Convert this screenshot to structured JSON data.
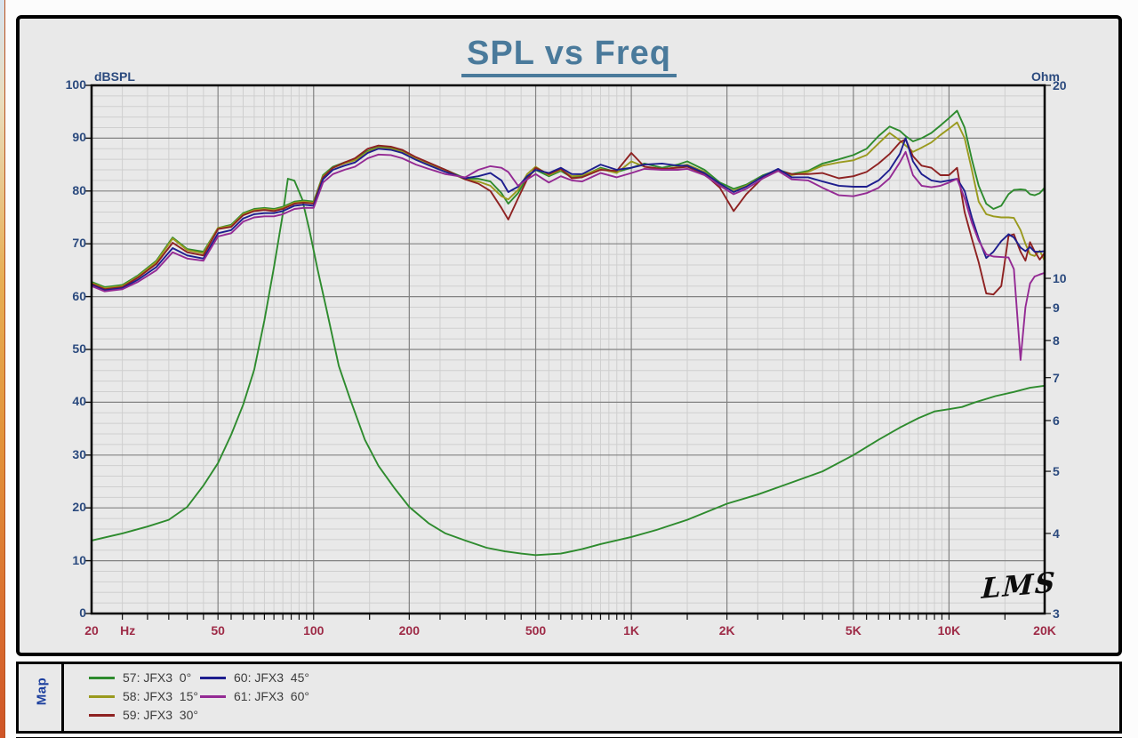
{
  "window": {
    "map_tab_label": "Map",
    "logo_text": "LMS"
  },
  "chart_data": {
    "type": "line",
    "title": "SPL vs Freq",
    "grid": true,
    "x_axis": {
      "unit": "Hz",
      "scale": "log",
      "min": 20,
      "max": 20000,
      "major_gridlines": [
        50,
        100,
        200,
        500,
        1000,
        2000,
        5000,
        10000
      ],
      "labels": [
        {
          "f": 20,
          "t": "20"
        },
        {
          "f": 26,
          "t": "Hz"
        },
        {
          "f": 50,
          "t": "50"
        },
        {
          "f": 100,
          "t": "100"
        },
        {
          "f": 200,
          "t": "200"
        },
        {
          "f": 500,
          "t": "500"
        },
        {
          "f": 1000,
          "t": "1K"
        },
        {
          "f": 2000,
          "t": "2K"
        },
        {
          "f": 5000,
          "t": "5K"
        },
        {
          "f": 10000,
          "t": "10K"
        },
        {
          "f": 20000,
          "t": "20K"
        }
      ]
    },
    "y_left": {
      "label": "dBSPL",
      "min": 0,
      "max": 100,
      "major_step": 10,
      "minor_step": 2,
      "tick_labels": [
        100,
        90,
        80,
        70,
        60,
        50,
        40,
        30,
        20,
        10,
        0
      ]
    },
    "y_right": {
      "label": "Ohm",
      "scale": "log",
      "min": 3,
      "max": 20,
      "tick_labels": [
        20,
        10,
        9,
        8,
        7,
        6,
        5,
        4,
        3
      ]
    },
    "colors": {
      "minor_grid": "#cfcfcf",
      "major_grid": "#828282",
      "frame": "#000000",
      "x_label": "#9e2b47",
      "y_label": "#2b4a7e",
      "title": "#4a7a9b"
    },
    "spl_freqs": [
      20,
      22,
      25,
      28,
      32,
      36,
      40,
      45,
      50,
      55,
      60,
      65,
      70,
      75,
      80,
      87,
      93,
      100,
      107,
      115,
      125,
      135,
      148,
      160,
      175,
      190,
      210,
      230,
      260,
      300,
      330,
      360,
      390,
      410,
      440,
      470,
      500,
      550,
      600,
      650,
      700,
      800,
      900,
      1000,
      1100,
      1250,
      1400,
      1500,
      1700,
      1900,
      2100,
      2300,
      2600,
      2900,
      3200,
      3600,
      4000,
      4500,
      5000,
      5500,
      6000,
      6500,
      7000,
      7300,
      7700,
      8200,
      8800,
      9400,
      10000,
      10600,
      11200,
      11800,
      12400,
      13100,
      13800,
      14600,
      15400,
      16000,
      16800,
      17400,
      18000,
      18600,
      19300,
      20000
    ],
    "series": [
      {
        "id": "57",
        "legend_label": "57: JFX3  0°",
        "color": "#2e8b2e",
        "axis": "left",
        "values": [
          62.8,
          61.8,
          62.2,
          64,
          66.8,
          71.2,
          69,
          68.5,
          73,
          73.6,
          75.8,
          76.6,
          76.8,
          76.6,
          77,
          78,
          78.2,
          78,
          83,
          84.6,
          85.4,
          86,
          87.6,
          88.3,
          88.2,
          87.6,
          86.3,
          85.3,
          84,
          82.4,
          82.3,
          81.8,
          79.6,
          77.6,
          79.6,
          82.6,
          84,
          82.8,
          83.8,
          82.6,
          82.8,
          84.4,
          83.6,
          84.4,
          85.2,
          84.4,
          85,
          85.6,
          84,
          81.6,
          80.4,
          81.2,
          83,
          84,
          83.2,
          83.8,
          85.2,
          86,
          86.8,
          88,
          90.4,
          92.2,
          91.4,
          90.4,
          89.4,
          90,
          91,
          92.4,
          93.8,
          95.2,
          92,
          86,
          81,
          77.6,
          76.6,
          77.2,
          79.4,
          80.2,
          80.3,
          80.2,
          79.4,
          79.2,
          79.6,
          80.6
        ]
      },
      {
        "id": "58",
        "legend_label": "58: JFX3  15°",
        "color": "#9a9a1e",
        "axis": "left",
        "values": [
          62.6,
          61.6,
          62,
          63.8,
          66.6,
          71,
          68.8,
          68.2,
          73,
          73.4,
          75.6,
          76.4,
          76.6,
          76.4,
          76.8,
          77.8,
          78,
          77.8,
          82.8,
          84.4,
          85.2,
          85.8,
          87.4,
          88.2,
          88,
          87.4,
          86.1,
          85.1,
          83.8,
          82.2,
          81.8,
          81,
          79,
          78.4,
          80.2,
          83.2,
          84.6,
          83,
          84,
          82.8,
          83,
          84.2,
          83.4,
          85.6,
          84.6,
          84,
          84.6,
          85,
          83.6,
          81.2,
          80,
          81,
          82.8,
          83.8,
          83,
          83.6,
          84.8,
          85.4,
          85.8,
          86.8,
          89,
          91,
          89.6,
          88.6,
          87.4,
          88.2,
          89.2,
          90.6,
          91.8,
          93,
          90,
          84,
          78,
          75.6,
          75.2,
          75,
          75,
          74.9,
          72.6,
          70,
          68,
          67.7,
          68.7,
          66.8
        ]
      },
      {
        "id": "59",
        "legend_label": "59: JFX3  30°",
        "color": "#8e2222",
        "axis": "left",
        "values": [
          62.4,
          61.4,
          61.8,
          63.6,
          66.2,
          70.2,
          68.4,
          67.8,
          72.8,
          73.2,
          75.4,
          76.2,
          76.4,
          76.2,
          76.6,
          77.6,
          77.8,
          77.6,
          82.6,
          84.4,
          85.4,
          86.2,
          88,
          88.6,
          88.4,
          87.8,
          86.4,
          85.4,
          84,
          82.2,
          81.4,
          80,
          76.8,
          74.6,
          78.6,
          82.2,
          84.4,
          83.2,
          84.2,
          82.4,
          82.6,
          84,
          83.8,
          87.2,
          84.6,
          84.2,
          84.4,
          84.6,
          83.2,
          80.6,
          76.2,
          79.4,
          82.6,
          83.8,
          83.2,
          83.2,
          83.4,
          82.4,
          82.8,
          83.6,
          85.2,
          87,
          89.2,
          89.8,
          86.6,
          84.8,
          84.4,
          83,
          83,
          84.4,
          76,
          71,
          66.5,
          60.6,
          60.4,
          62,
          71.5,
          71.8,
          68.5,
          66.8,
          70.3,
          68.6,
          67,
          68.3
        ]
      },
      {
        "id": "60",
        "legend_label": "60: JFX3  45°",
        "color": "#1e1e8e",
        "axis": "left",
        "values": [
          62.2,
          61.2,
          61.6,
          63.2,
          65.6,
          69.2,
          67.8,
          67.2,
          72,
          72.6,
          74.8,
          75.6,
          75.8,
          75.8,
          76.2,
          77.2,
          77.4,
          77.2,
          82.2,
          84,
          84.8,
          85.4,
          87.2,
          88,
          87.8,
          87.2,
          85.9,
          84.9,
          83.6,
          82.4,
          82.8,
          83.4,
          82,
          79.8,
          80.8,
          82.8,
          84,
          83.4,
          84.4,
          83.2,
          83.2,
          85,
          84,
          84.4,
          85,
          85.2,
          84.8,
          84.8,
          83.4,
          81.4,
          79.8,
          80.8,
          82.8,
          84.2,
          82.6,
          82.6,
          81.8,
          81,
          80.8,
          80.8,
          82,
          84,
          87,
          90,
          85.6,
          83.2,
          82,
          81.7,
          82,
          82.3,
          80,
          75,
          71,
          67.3,
          68.5,
          70.5,
          71.8,
          71.2,
          69.3,
          68.6,
          69.4,
          68.5,
          68.5,
          68.6
        ]
      },
      {
        "id": "61",
        "legend_label": "61: JFX3  60°",
        "color": "#942a94",
        "axis": "left",
        "values": [
          62,
          61,
          61.4,
          62.8,
          65,
          68.4,
          67.2,
          66.8,
          71.4,
          72,
          74.2,
          75,
          75.2,
          75.2,
          75.6,
          76.6,
          76.8,
          76.8,
          81.6,
          83.2,
          84,
          84.6,
          86.2,
          86.9,
          86.8,
          86.2,
          85,
          84.2,
          83.2,
          82.6,
          84,
          84.7,
          84.4,
          83.6,
          81,
          82.2,
          83.2,
          81.6,
          82.8,
          82,
          81.8,
          83.4,
          82.6,
          83.4,
          84.2,
          84,
          84,
          84.2,
          83,
          81,
          79.4,
          80.4,
          82.4,
          83.8,
          82.2,
          82,
          80.6,
          79.2,
          79,
          79.6,
          80.6,
          82.4,
          85.4,
          87.4,
          83,
          81,
          80.7,
          81,
          81.6,
          82.3,
          78.6,
          74,
          70.6,
          68,
          67.6,
          67.5,
          67.4,
          65.2,
          48,
          58,
          62.5,
          63.8,
          64.2,
          64.5
        ]
      }
    ],
    "impedance_series": {
      "id": "imp",
      "color": "#2e8b2e",
      "axis": "right",
      "freqs": [
        20,
        25,
        30,
        35,
        40,
        45,
        50,
        55,
        60,
        65,
        70,
        75,
        80,
        83,
        87,
        92,
        97,
        103,
        110,
        120,
        130,
        145,
        160,
        180,
        200,
        230,
        260,
        300,
        350,
        400,
        450,
        500,
        600,
        700,
        800,
        1000,
        1200,
        1500,
        2000,
        2500,
        3000,
        4000,
        5000,
        6000,
        7000,
        8000,
        9000,
        10000,
        11000,
        12000,
        14000,
        16000,
        18000,
        20000
      ],
      "values": [
        3.9,
        4.0,
        4.1,
        4.2,
        4.4,
        4.75,
        5.15,
        5.7,
        6.35,
        7.2,
        8.6,
        10.4,
        12.6,
        14.3,
        14.2,
        13.3,
        11.9,
        10.3,
        8.9,
        7.3,
        6.5,
        5.6,
        5.1,
        4.7,
        4.4,
        4.15,
        4.0,
        3.9,
        3.8,
        3.75,
        3.72,
        3.7,
        3.72,
        3.78,
        3.85,
        3.95,
        4.05,
        4.2,
        4.45,
        4.6,
        4.75,
        5.0,
        5.3,
        5.6,
        5.85,
        6.05,
        6.2,
        6.25,
        6.3,
        6.4,
        6.55,
        6.65,
        6.75,
        6.8
      ]
    },
    "legend": {
      "placement": [
        {
          "series": 0,
          "col": 0,
          "row": 0
        },
        {
          "series": 1,
          "col": 0,
          "row": 1
        },
        {
          "series": 2,
          "col": 0,
          "row": 2
        },
        {
          "series": 3,
          "col": 1,
          "row": 0
        },
        {
          "series": 4,
          "col": 1,
          "row": 1
        }
      ]
    }
  }
}
